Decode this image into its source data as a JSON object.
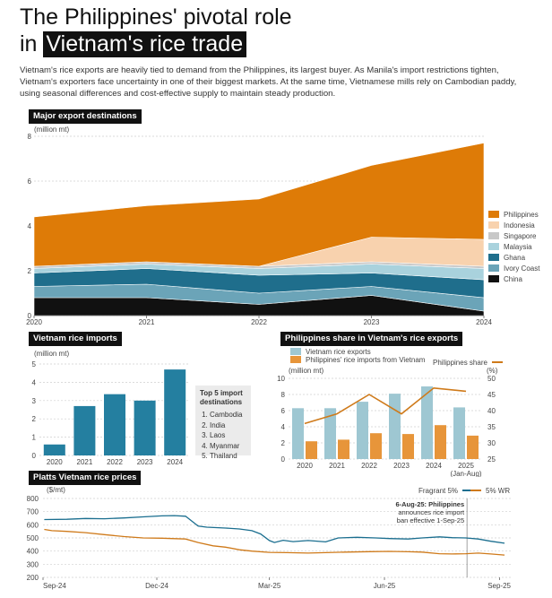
{
  "header": {
    "title_line1": "The Philippines' pivotal role",
    "title_line2_prefix": "in",
    "title_line2_highlight": "Vietnam's rice trade",
    "intro": "Vietnam's rice exports are heavily tied to demand from the Philippines, its largest buyer. As Manila's import restrictions tighten, Vietnam's exporters face uncertainty in one of their biggest markets. At the same time, Vietnamese mills rely on Cambodian paddy, using seasonal differences and cost-effective supply to maintain steady production."
  },
  "colors": {
    "Philippines": "#de7b07",
    "Indonesia": "#f8d2ae",
    "Singapore": "#c8c8c8",
    "Malaysia": "#a9d2dd",
    "Ghana": "#1f6e8c",
    "Ivory Coast": "#6ba4b8",
    "China": "#111111",
    "imports_bar": "#247fa0",
    "share_bar_exports": "#9ec7d2",
    "share_bar_ph": "#e7953a",
    "share_line": "#cf7a1a",
    "fragrant": "#1a6e8f",
    "wr5": "#cf7a1a"
  },
  "chart_data": [
    {
      "type": "area",
      "title": "Major export destinations",
      "ylabel": "(million mt)",
      "x": [
        "2020",
        "2021",
        "2022",
        "2023",
        "2024"
      ],
      "ylim": [
        0,
        8
      ],
      "yticks": [
        "0",
        "2",
        "4",
        "6",
        "8"
      ],
      "series": [
        {
          "name": "Philippines",
          "values": [
            2.2,
            2.5,
            3.0,
            3.2,
            4.3
          ]
        },
        {
          "name": "Indonesia",
          "values": [
            0.0,
            0.0,
            0.0,
            1.1,
            1.2
          ]
        },
        {
          "name": "Singapore",
          "values": [
            0.1,
            0.1,
            0.1,
            0.1,
            0.1
          ]
        },
        {
          "name": "Malaysia",
          "values": [
            0.2,
            0.2,
            0.3,
            0.4,
            0.5
          ]
        },
        {
          "name": "Ghana",
          "values": [
            0.6,
            0.7,
            0.8,
            0.6,
            0.8
          ]
        },
        {
          "name": "Ivory Coast",
          "values": [
            0.5,
            0.6,
            0.5,
            0.4,
            0.6
          ]
        },
        {
          "name": "China",
          "values": [
            0.8,
            0.8,
            0.5,
            0.9,
            0.2
          ]
        }
      ],
      "legend_placement": "right"
    },
    {
      "type": "bar",
      "title": "Vietnam rice imports",
      "ylabel": "(million mt)",
      "categories": [
        "2020",
        "2021",
        "2022",
        "2023",
        "2024"
      ],
      "values": [
        0.6,
        2.7,
        3.35,
        3.0,
        4.7
      ],
      "ylim": [
        0,
        5
      ],
      "yticks": [
        "0",
        "1",
        "2",
        "3",
        "4",
        "5"
      ],
      "top5": {
        "heading": "Top 5 import destinations",
        "items": [
          "Cambodia",
          "India",
          "Laos",
          "Myanmar",
          "Thailand"
        ]
      }
    },
    {
      "type": "bar",
      "title": "Philippines share in Vietnam's rice exports",
      "ylabel": "(million mt)",
      "ylabel_right": "(%)",
      "categories": [
        "2020",
        "2021",
        "2022",
        "2023",
        "2024",
        "2025"
      ],
      "category_notes": [
        "",
        "",
        "",
        "",
        "",
        "(Jan-Aug)"
      ],
      "ylim": [
        0,
        10
      ],
      "yticks": [
        "0",
        "2",
        "4",
        "6",
        "8",
        "10"
      ],
      "ylim_right": [
        25,
        50
      ],
      "yticks_right": [
        "25",
        "30",
        "35",
        "40",
        "45",
        "50"
      ],
      "series": [
        {
          "name": "Vietnam rice exports",
          "values": [
            6.3,
            6.3,
            7.1,
            8.1,
            9.0,
            6.4
          ]
        },
        {
          "name": "Philippines' rice imports from Vietnam",
          "values": [
            2.2,
            2.4,
            3.2,
            3.1,
            4.2,
            2.9
          ]
        },
        {
          "name": "Philippines share",
          "values": [
            36,
            39,
            45,
            39,
            47,
            46
          ]
        }
      ]
    },
    {
      "type": "line",
      "title": "Platts Vietnam rice prices",
      "ylabel": "($/mt)",
      "ylim": [
        200,
        800
      ],
      "yticks": [
        "200",
        "300",
        "400",
        "500",
        "600",
        "700",
        "800"
      ],
      "xticks": [
        "Sep-24",
        "Dec-24",
        "Mar-25",
        "Jun-25",
        "Sep-25"
      ],
      "xrange": [
        "2024-09-01",
        "2025-09-10"
      ],
      "annotation": {
        "date": "2025-08-06",
        "lines": [
          "6-Aug-25: Philippines",
          "announces rice import",
          "ban effective 1-Sep-25"
        ]
      },
      "series": [
        {
          "name": "Fragrant 5%",
          "points": [
            [
              "2024-09-02",
              640
            ],
            [
              "2024-09-20",
              642
            ],
            [
              "2024-10-05",
              648
            ],
            [
              "2024-10-20",
              646
            ],
            [
              "2024-11-05",
              652
            ],
            [
              "2024-11-20",
              660
            ],
            [
              "2024-12-05",
              668
            ],
            [
              "2024-12-15",
              670
            ],
            [
              "2024-12-24",
              665
            ],
            [
              "2025-01-03",
              590
            ],
            [
              "2025-01-10",
              582
            ],
            [
              "2025-01-25",
              575
            ],
            [
              "2025-02-05",
              568
            ],
            [
              "2025-02-15",
              555
            ],
            [
              "2025-02-22",
              530
            ],
            [
              "2025-03-01",
              480
            ],
            [
              "2025-03-05",
              465
            ],
            [
              "2025-03-12",
              482
            ],
            [
              "2025-03-20",
              472
            ],
            [
              "2025-04-01",
              480
            ],
            [
              "2025-04-15",
              470
            ],
            [
              "2025-04-25",
              500
            ],
            [
              "2025-05-10",
              505
            ],
            [
              "2025-05-25",
              500
            ],
            [
              "2025-06-05",
              495
            ],
            [
              "2025-06-20",
              492
            ],
            [
              "2025-07-01",
              500
            ],
            [
              "2025-07-15",
              508
            ],
            [
              "2025-07-25",
              502
            ],
            [
              "2025-08-05",
              500
            ],
            [
              "2025-08-15",
              492
            ],
            [
              "2025-08-25",
              475
            ],
            [
              "2025-09-05",
              460
            ]
          ]
        },
        {
          "name": "5% WR",
          "points": [
            [
              "2024-09-02",
              565
            ],
            [
              "2024-09-08",
              555
            ],
            [
              "2024-09-20",
              550
            ],
            [
              "2024-10-05",
              540
            ],
            [
              "2024-10-20",
              525
            ],
            [
              "2024-11-05",
              510
            ],
            [
              "2024-11-20",
              500
            ],
            [
              "2024-12-05",
              498
            ],
            [
              "2024-12-24",
              492
            ],
            [
              "2025-01-03",
              465
            ],
            [
              "2025-01-15",
              440
            ],
            [
              "2025-01-25",
              430
            ],
            [
              "2025-02-05",
              410
            ],
            [
              "2025-02-15",
              400
            ],
            [
              "2025-03-01",
              390
            ],
            [
              "2025-03-15",
              388
            ],
            [
              "2025-04-01",
              385
            ],
            [
              "2025-04-15",
              388
            ],
            [
              "2025-05-01",
              392
            ],
            [
              "2025-05-20",
              396
            ],
            [
              "2025-06-05",
              398
            ],
            [
              "2025-06-20",
              395
            ],
            [
              "2025-07-01",
              392
            ],
            [
              "2025-07-15",
              380
            ],
            [
              "2025-07-25",
              378
            ],
            [
              "2025-08-05",
              380
            ],
            [
              "2025-08-15",
              385
            ],
            [
              "2025-08-25",
              378
            ],
            [
              "2025-09-05",
              370
            ]
          ]
        }
      ]
    }
  ]
}
